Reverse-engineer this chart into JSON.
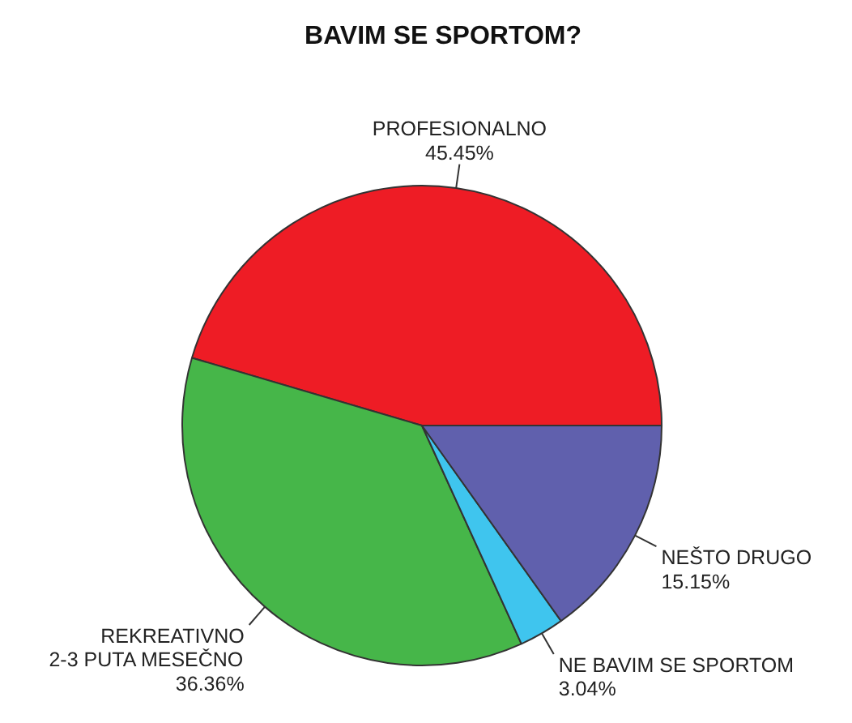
{
  "chart_data": {
    "type": "pie",
    "title": "BAVIM SE SPORTOM?",
    "categories": [
      "PROFESIONALNO",
      "REKREATIVNO\n2-3 PUTA MESEČNO",
      "NE BAVIM SE SPORTOM",
      "NEŠTO DRUGO"
    ],
    "values": [
      45.45,
      36.36,
      3.04,
      15.15
    ],
    "colors": [
      "#ee1c25",
      "#46b649",
      "#3fc5ee",
      "#6060ad"
    ],
    "value_labels": [
      "45.45%",
      "36.36%",
      "3.04%",
      "15.15%"
    ]
  }
}
